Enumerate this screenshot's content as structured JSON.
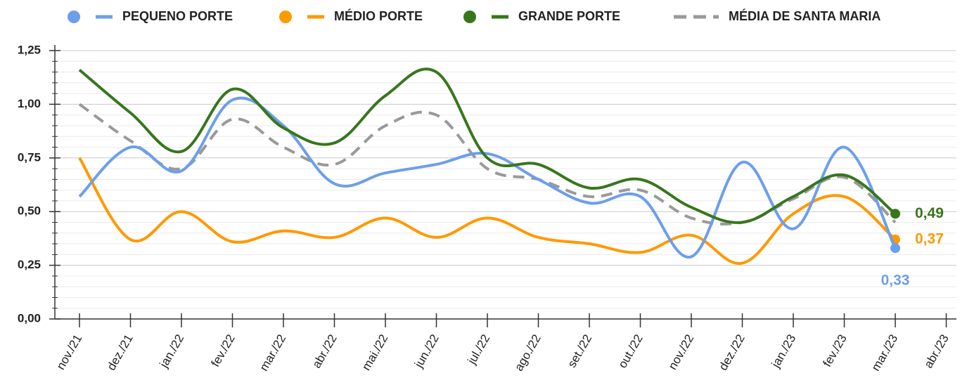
{
  "chart_data": {
    "type": "line",
    "categories": [
      "nov./21",
      "dez./21",
      "jan./22",
      "fev./22",
      "mar./22",
      "abr./22",
      "mai./22",
      "jun./22",
      "jul./22",
      "ago./22",
      "set./22",
      "out./22",
      "nov./22",
      "dez./22",
      "jan./23",
      "fev./23",
      "mar./23",
      "abr./23"
    ],
    "series": [
      {
        "name": "PEQUENO PORTE",
        "color": "#6d9eeb",
        "dashed": false,
        "values": [
          0.57,
          0.8,
          0.69,
          1.02,
          0.9,
          0.63,
          0.68,
          0.72,
          0.77,
          0.65,
          0.54,
          0.57,
          0.29,
          0.73,
          0.42,
          0.8,
          0.33,
          null
        ],
        "value_labels": [
          null,
          null,
          null,
          null,
          null,
          null,
          null,
          null,
          null,
          null,
          null,
          null,
          null,
          null,
          null,
          null,
          "0,33",
          null
        ]
      },
      {
        "name": "MÉDIO PORTE",
        "color": "#ff9900",
        "dashed": false,
        "values": [
          0.75,
          0.37,
          0.5,
          0.36,
          0.41,
          0.38,
          0.47,
          0.38,
          0.47,
          0.38,
          0.35,
          0.31,
          0.39,
          0.26,
          0.49,
          0.57,
          0.37,
          null
        ],
        "value_labels": [
          null,
          null,
          null,
          null,
          null,
          null,
          null,
          null,
          null,
          null,
          null,
          null,
          null,
          null,
          null,
          null,
          "0,37",
          null
        ]
      },
      {
        "name": "GRANDE PORTE",
        "color": "#38761d",
        "dashed": false,
        "values": [
          1.16,
          0.96,
          0.78,
          1.07,
          0.89,
          0.82,
          1.04,
          1.15,
          0.75,
          0.72,
          0.61,
          0.65,
          0.52,
          0.45,
          0.57,
          0.67,
          0.49,
          null
        ],
        "value_labels": [
          null,
          null,
          null,
          null,
          null,
          null,
          null,
          null,
          null,
          null,
          null,
          null,
          null,
          null,
          null,
          null,
          "0,49",
          null
        ]
      },
      {
        "name": "MÉDIA DE SANTA MARIA",
        "color": "#999999",
        "dashed": true,
        "values": [
          1.0,
          0.83,
          0.7,
          0.93,
          0.8,
          0.72,
          0.9,
          0.95,
          0.7,
          0.65,
          0.57,
          0.6,
          0.47,
          0.45,
          0.56,
          0.66,
          0.45,
          null
        ]
      }
    ],
    "ylim": [
      0,
      1.25
    ],
    "yticks": [
      {
        "value": 0,
        "label": "0,00"
      },
      {
        "value": 0.25,
        "label": "0,25"
      },
      {
        "value": 0.5,
        "label": "0,50"
      },
      {
        "value": 0.75,
        "label": "0,75"
      },
      {
        "value": 1,
        "label": "1,00"
      },
      {
        "value": 1.25,
        "label": "1,25"
      }
    ],
    "minor_yticks": [
      0.05,
      0.1,
      0.15,
      0.2,
      0.3,
      0.35,
      0.4,
      0.45,
      0.55,
      0.6,
      0.65,
      0.7,
      0.8,
      0.85,
      0.9,
      0.95,
      1.05,
      1.1,
      1.15,
      1.2
    ],
    "grid": true,
    "legend": "top"
  }
}
